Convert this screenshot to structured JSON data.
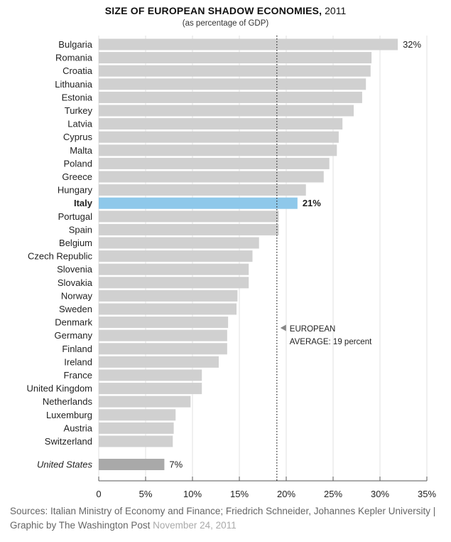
{
  "title_bold": "SIZE OF EUROPEAN SHADOW ECONOMIES,",
  "title_year": "2011",
  "subtitle": "(as percentage of GDP)",
  "source_text": "Sources: Italian Ministry of Economy and Finance; Friedrich Schneider, Johannes Kepler University | Graphic by The Washington Post",
  "date_text": "November 24, 2011",
  "colors": {
    "bar": "#d0d0d0",
    "highlight": "#8ec8ea",
    "us_bar": "#a9a9a9",
    "reference_line": "#333333"
  },
  "chart_data": {
    "type": "bar",
    "orientation": "horizontal",
    "title": "SIZE OF EUROPEAN SHADOW ECONOMIES, 2011",
    "subtitle": "(as percentage of GDP)",
    "unit": "% of GDP",
    "xlim": [
      0,
      35
    ],
    "x_ticks": [
      0,
      5,
      10,
      15,
      20,
      25,
      30,
      35
    ],
    "x_tick_labels": [
      "0",
      "5%",
      "10%",
      "15%",
      "20%",
      "25%",
      "30%",
      "35%"
    ],
    "grid": true,
    "categories": [
      "Bulgaria",
      "Romania",
      "Croatia",
      "Lithuania",
      "Estonia",
      "Turkey",
      "Latvia",
      "Cyprus",
      "Malta",
      "Poland",
      "Greece",
      "Hungary",
      "Italy",
      "Portugal",
      "Spain",
      "Belgium",
      "Czech Republic",
      "Slovenia",
      "Slovakia",
      "Norway",
      "Sweden",
      "Denmark",
      "Germany",
      "Finland",
      "Ireland",
      "France",
      "United Kingdom",
      "Netherlands",
      "Luxemburg",
      "Austria",
      "Switzerland"
    ],
    "values": [
      31.9,
      29.1,
      29.0,
      28.5,
      28.1,
      27.2,
      26.0,
      25.6,
      25.4,
      24.6,
      24.0,
      22.1,
      21.2,
      19.2,
      19.2,
      17.1,
      16.4,
      16.0,
      16.0,
      14.8,
      14.7,
      13.8,
      13.7,
      13.7,
      12.8,
      11.0,
      11.0,
      9.8,
      8.2,
      8.0,
      7.9
    ],
    "highlight": "Italy",
    "value_labels": {
      "Bulgaria": "32%",
      "Italy": "21%"
    },
    "extra_bar": {
      "category": "United States",
      "value": 7.0,
      "label": "7%"
    },
    "reference_line": {
      "value": 19.0,
      "label_line1": "EUROPEAN",
      "label_line2": "AVERAGE: 19 percent"
    }
  }
}
